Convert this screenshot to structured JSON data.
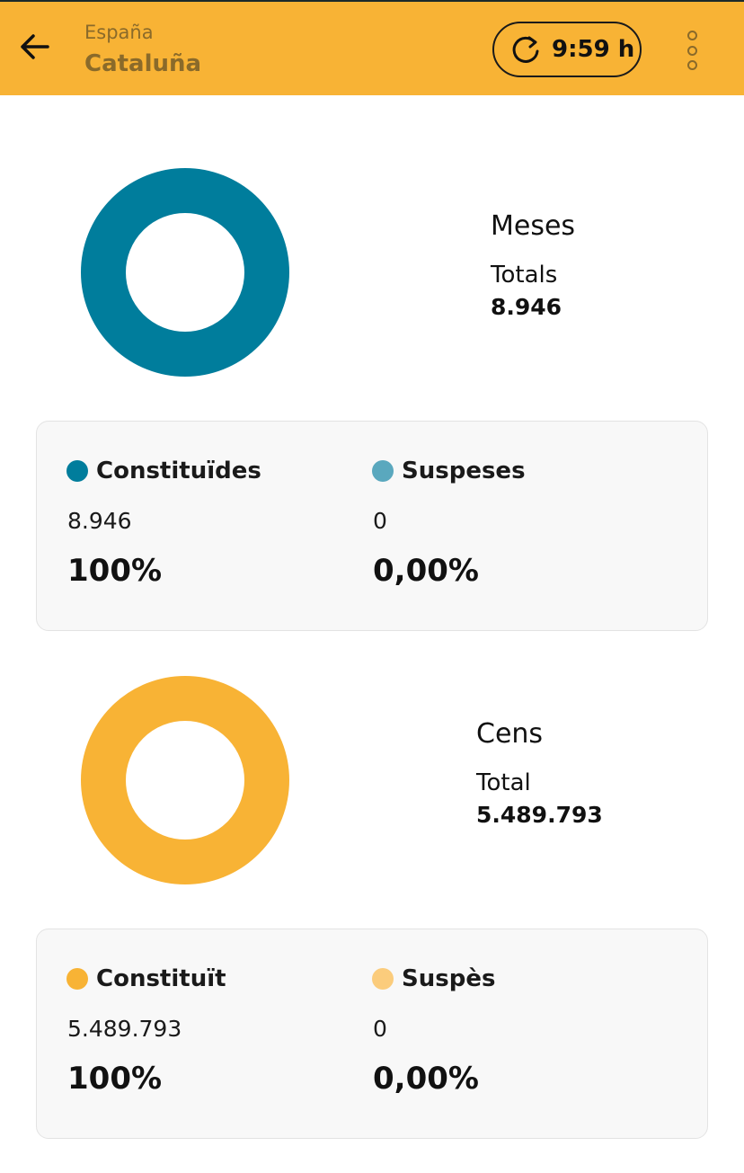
{
  "header": {
    "parent": "España",
    "title": "Cataluña",
    "refresh_time": "9:59 h",
    "colors": {
      "bar": "#f8b335",
      "text": "#8a6a2a"
    }
  },
  "meses": {
    "title": "Meses",
    "total_label": "Totals",
    "total_value": "8.946",
    "constituted": {
      "label": "Constituïdes",
      "count": "8.946",
      "percent": "100%",
      "color": "#007d9c",
      "fraction": 1.0
    },
    "suspended": {
      "label": "Suspeses",
      "count": "0",
      "percent": "0,00%",
      "color": "#5aa8be",
      "fraction": 0.0
    }
  },
  "cens": {
    "title": "Cens",
    "total_label": "Total",
    "total_value": "5.489.793",
    "constituted": {
      "label": "Constituït",
      "count": "5.489.793",
      "percent": "100%",
      "color": "#f8b335",
      "fraction": 1.0
    },
    "suspended": {
      "label": "Suspès",
      "count": "0",
      "percent": "0,00%",
      "color": "#fbcc7c",
      "fraction": 0.0
    }
  }
}
